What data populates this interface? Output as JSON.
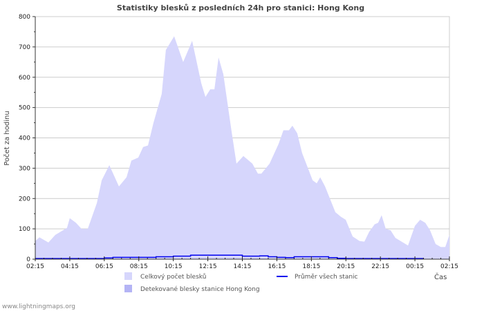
{
  "chart_data": {
    "type": "area",
    "title": "Statistiky blesků z posledních 24h pro stanici: Hong Kong",
    "xlabel": "Čas",
    "ylabel": "Počet za hodinu",
    "ylim": [
      0,
      800
    ],
    "xlim_hours": [
      0,
      24
    ],
    "y_ticks": [
      "0",
      "100",
      "200",
      "300",
      "400",
      "500",
      "600",
      "700",
      "800"
    ],
    "x_ticks": [
      "02:15",
      "04:15",
      "06:15",
      "08:15",
      "10:15",
      "12:15",
      "14:15",
      "16:15",
      "18:15",
      "20:15",
      "22:15",
      "00:15",
      "02:15"
    ],
    "grid": true,
    "legend_position": "bottom",
    "colors": {
      "total": "#d6d6fc",
      "station": "#b4b4f5",
      "average": "#0000ee",
      "grid": "#cccccc"
    },
    "series": [
      {
        "name": "Celkový počet blesků",
        "x_hours": [
          0,
          0.24,
          0.76,
          1.16,
          1.84,
          2.0,
          2.36,
          2.68,
          3.04,
          3.57,
          3.85,
          4.29,
          4.85,
          5.29,
          5.57,
          5.97,
          6.25,
          6.53,
          6.85,
          7.33,
          7.57,
          8.05,
          8.57,
          9.09,
          9.62,
          9.86,
          10.14,
          10.38,
          10.62,
          10.9,
          11.38,
          11.66,
          12.06,
          12.58,
          12.9,
          13.1,
          13.58,
          14.1,
          14.38,
          14.7,
          14.9,
          15.18,
          15.46,
          15.87,
          16.07,
          16.31,
          16.51,
          16.79,
          17.39,
          17.71,
          17.99,
          18.39,
          18.79,
          19.07,
          19.35,
          19.67,
          19.87,
          20.07,
          20.31,
          20.59,
          20.87,
          21.6,
          22.0,
          22.3,
          22.6,
          22.88,
          23.2,
          23.5,
          23.76,
          24
        ],
        "values": [
          60,
          72,
          55,
          80,
          103,
          135,
          120,
          100,
          100,
          185,
          260,
          310,
          240,
          270,
          325,
          335,
          370,
          375,
          450,
          545,
          690,
          735,
          650,
          720,
          580,
          535,
          560,
          560,
          665,
          610,
          420,
          315,
          340,
          315,
          282,
          282,
          315,
          380,
          425,
          425,
          440,
          415,
          350,
          290,
          260,
          250,
          270,
          240,
          155,
          140,
          130,
          75,
          60,
          58,
          90,
          115,
          120,
          145,
          100,
          95,
          70,
          45,
          110,
          130,
          120,
          95,
          50,
          40,
          40,
          80
        ]
      },
      {
        "name": "Detekované blesky stanice Hong Kong",
        "x_hours": [],
        "values": []
      },
      {
        "name": "Průměr všech stanic",
        "x_hours": [
          0,
          3.5,
          4.0,
          4.5,
          6.5,
          7.0,
          8.0,
          9.0,
          11.5,
          12.0,
          13.0,
          13.5,
          14.0,
          14.5,
          15.0,
          16.0,
          17.0,
          17.5,
          18.0,
          22.5
        ],
        "values": [
          2,
          2,
          4,
          6,
          6,
          8,
          10,
          13,
          13,
          10,
          11,
          8,
          6,
          5,
          8,
          8,
          5,
          3,
          2,
          2
        ]
      }
    ]
  },
  "footer": "www.lightningmaps.org"
}
